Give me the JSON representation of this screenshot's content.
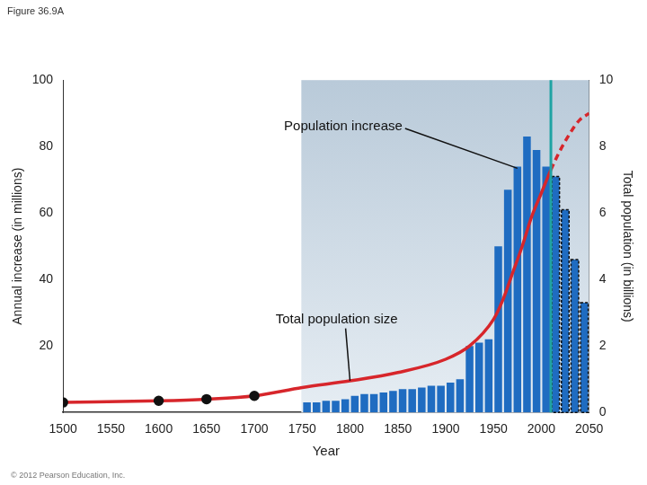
{
  "chart_data": {
    "type": "bar",
    "title": "Figure 36.9A",
    "x_label": "Year",
    "y_label": "Annual increase (in millions)",
    "y2_label": "Total population (in billions)",
    "source": "© 2012 Pearson Education, Inc.",
    "projection_start": 2010,
    "xlim": [
      1500,
      2050
    ],
    "xticks": [
      1500,
      1550,
      1600,
      1650,
      1700,
      1750,
      1800,
      1850,
      1900,
      1950,
      2000,
      2050
    ],
    "ylim": [
      0,
      100
    ],
    "yticks": [
      20,
      40,
      60,
      80,
      100
    ],
    "y2lim": [
      0,
      10
    ],
    "y2ticks": [
      0,
      2,
      4,
      6,
      8,
      10
    ],
    "grid": false,
    "series": [
      {
        "name": "Population increase",
        "type": "bar",
        "color": "#1f6cc1",
        "x": [
          1755,
          1765,
          1775,
          1785,
          1795,
          1805,
          1815,
          1825,
          1835,
          1845,
          1855,
          1865,
          1875,
          1885,
          1895,
          1905,
          1915,
          1925,
          1935,
          1945,
          1955,
          1965,
          1975,
          1985,
          1995,
          2005,
          2015,
          2025,
          2035,
          2045
        ],
        "values": [
          3,
          3,
          3.5,
          3.5,
          4,
          5,
          5.5,
          5.5,
          6,
          6.5,
          7,
          7,
          7.5,
          8,
          8,
          9,
          10,
          20,
          21,
          22,
          50,
          67,
          74,
          83,
          79,
          74,
          71,
          61,
          46,
          33
        ]
      },
      {
        "name": "Total population size",
        "type": "line",
        "axis": "y2",
        "color": "#d7262b",
        "marker": "circle",
        "x": [
          1500,
          1600,
          1650,
          1700,
          1750,
          1800,
          1850,
          1900,
          1925,
          1950,
          1960,
          1970,
          1980,
          1990,
          2000,
          2010,
          2020,
          2030,
          2040,
          2050
        ],
        "values": [
          0.3,
          0.35,
          0.4,
          0.5,
          0.75,
          0.95,
          1.2,
          1.6,
          2.0,
          2.8,
          3.4,
          4.2,
          5.0,
          5.9,
          6.6,
          7.3,
          7.9,
          8.4,
          8.8,
          9.0
        ],
        "marked_x": [
          1500,
          1600,
          1650,
          1700
        ]
      }
    ]
  }
}
